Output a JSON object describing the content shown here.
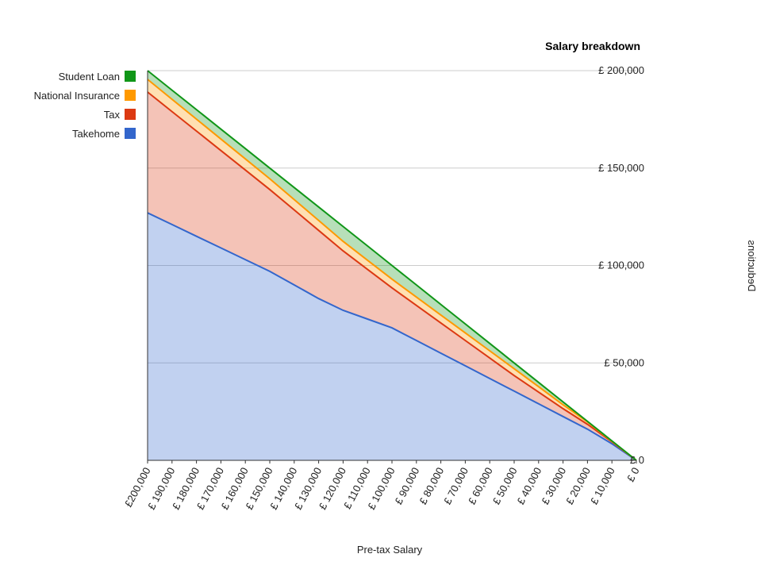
{
  "chart_data": {
    "type": "area",
    "title": "Salary breakdown",
    "xlabel": "Pre-tax Salary",
    "ylabel": "Deductions",
    "x": [
      0,
      10000,
      20000,
      30000,
      40000,
      50000,
      60000,
      70000,
      80000,
      90000,
      100000,
      110000,
      120000,
      130000,
      140000,
      150000,
      160000,
      170000,
      180000,
      190000,
      200000
    ],
    "x_tick_labels": [
      "£ 0",
      "£ 10,000",
      "£ 20,000",
      "£ 30,000",
      "£ 40,000",
      "£ 50,000",
      "£ 60,000",
      "£ 70,000",
      "£ 80,000",
      "£ 90,000",
      "£ 100,000",
      "£ 110,000",
      "£ 120,000",
      "£ 130,000",
      "£ 140,000",
      "£ 150,000",
      "£ 160,000",
      "£ 170,000",
      "£ 180,000",
      "£ 190,000",
      "£200,000"
    ],
    "y_ticks": [
      0,
      50000,
      100000,
      150000,
      200000
    ],
    "y_tick_labels": [
      "£ 0",
      "£ 50,000",
      "£ 100,000",
      "£ 150,000",
      "£ 200,000"
    ],
    "ylim": [
      0,
      200000
    ],
    "xlim": [
      0,
      200000
    ],
    "stacked": true,
    "mirrored": true,
    "grid": true,
    "legend_position": "top-left",
    "series": [
      {
        "name": "Takehome",
        "color": "#3366cc",
        "values": [
          0,
          8500,
          16000,
          22500,
          29000,
          35500,
          42000,
          48500,
          55000,
          61500,
          68000,
          72500,
          77000,
          83000,
          90000,
          97000,
          103000,
          109000,
          115000,
          121000,
          127000
        ]
      },
      {
        "name": "Tax",
        "color": "#dc3912",
        "values": [
          0,
          1000,
          2500,
          4000,
          6000,
          8000,
          10500,
          13000,
          15500,
          18000,
          20500,
          25500,
          30500,
          35000,
          38500,
          42000,
          46000,
          50000,
          54000,
          58000,
          62000
        ]
      },
      {
        "name": "National Insurance",
        "color": "#ff9900",
        "values": [
          0,
          300,
          1200,
          2000,
          2800,
          3500,
          3700,
          3900,
          4100,
          4300,
          4500,
          4700,
          4900,
          5100,
          5300,
          5500,
          5700,
          5900,
          6100,
          6300,
          6500
        ]
      },
      {
        "name": "Student Loan",
        "color": "#109618",
        "values": [
          0,
          200,
          300,
          1500,
          2200,
          3000,
          3800,
          4600,
          5400,
          6200,
          7000,
          7300,
          7600,
          6900,
          6200,
          5500,
          5300,
          5100,
          4900,
          4700,
          4500
        ]
      }
    ]
  }
}
